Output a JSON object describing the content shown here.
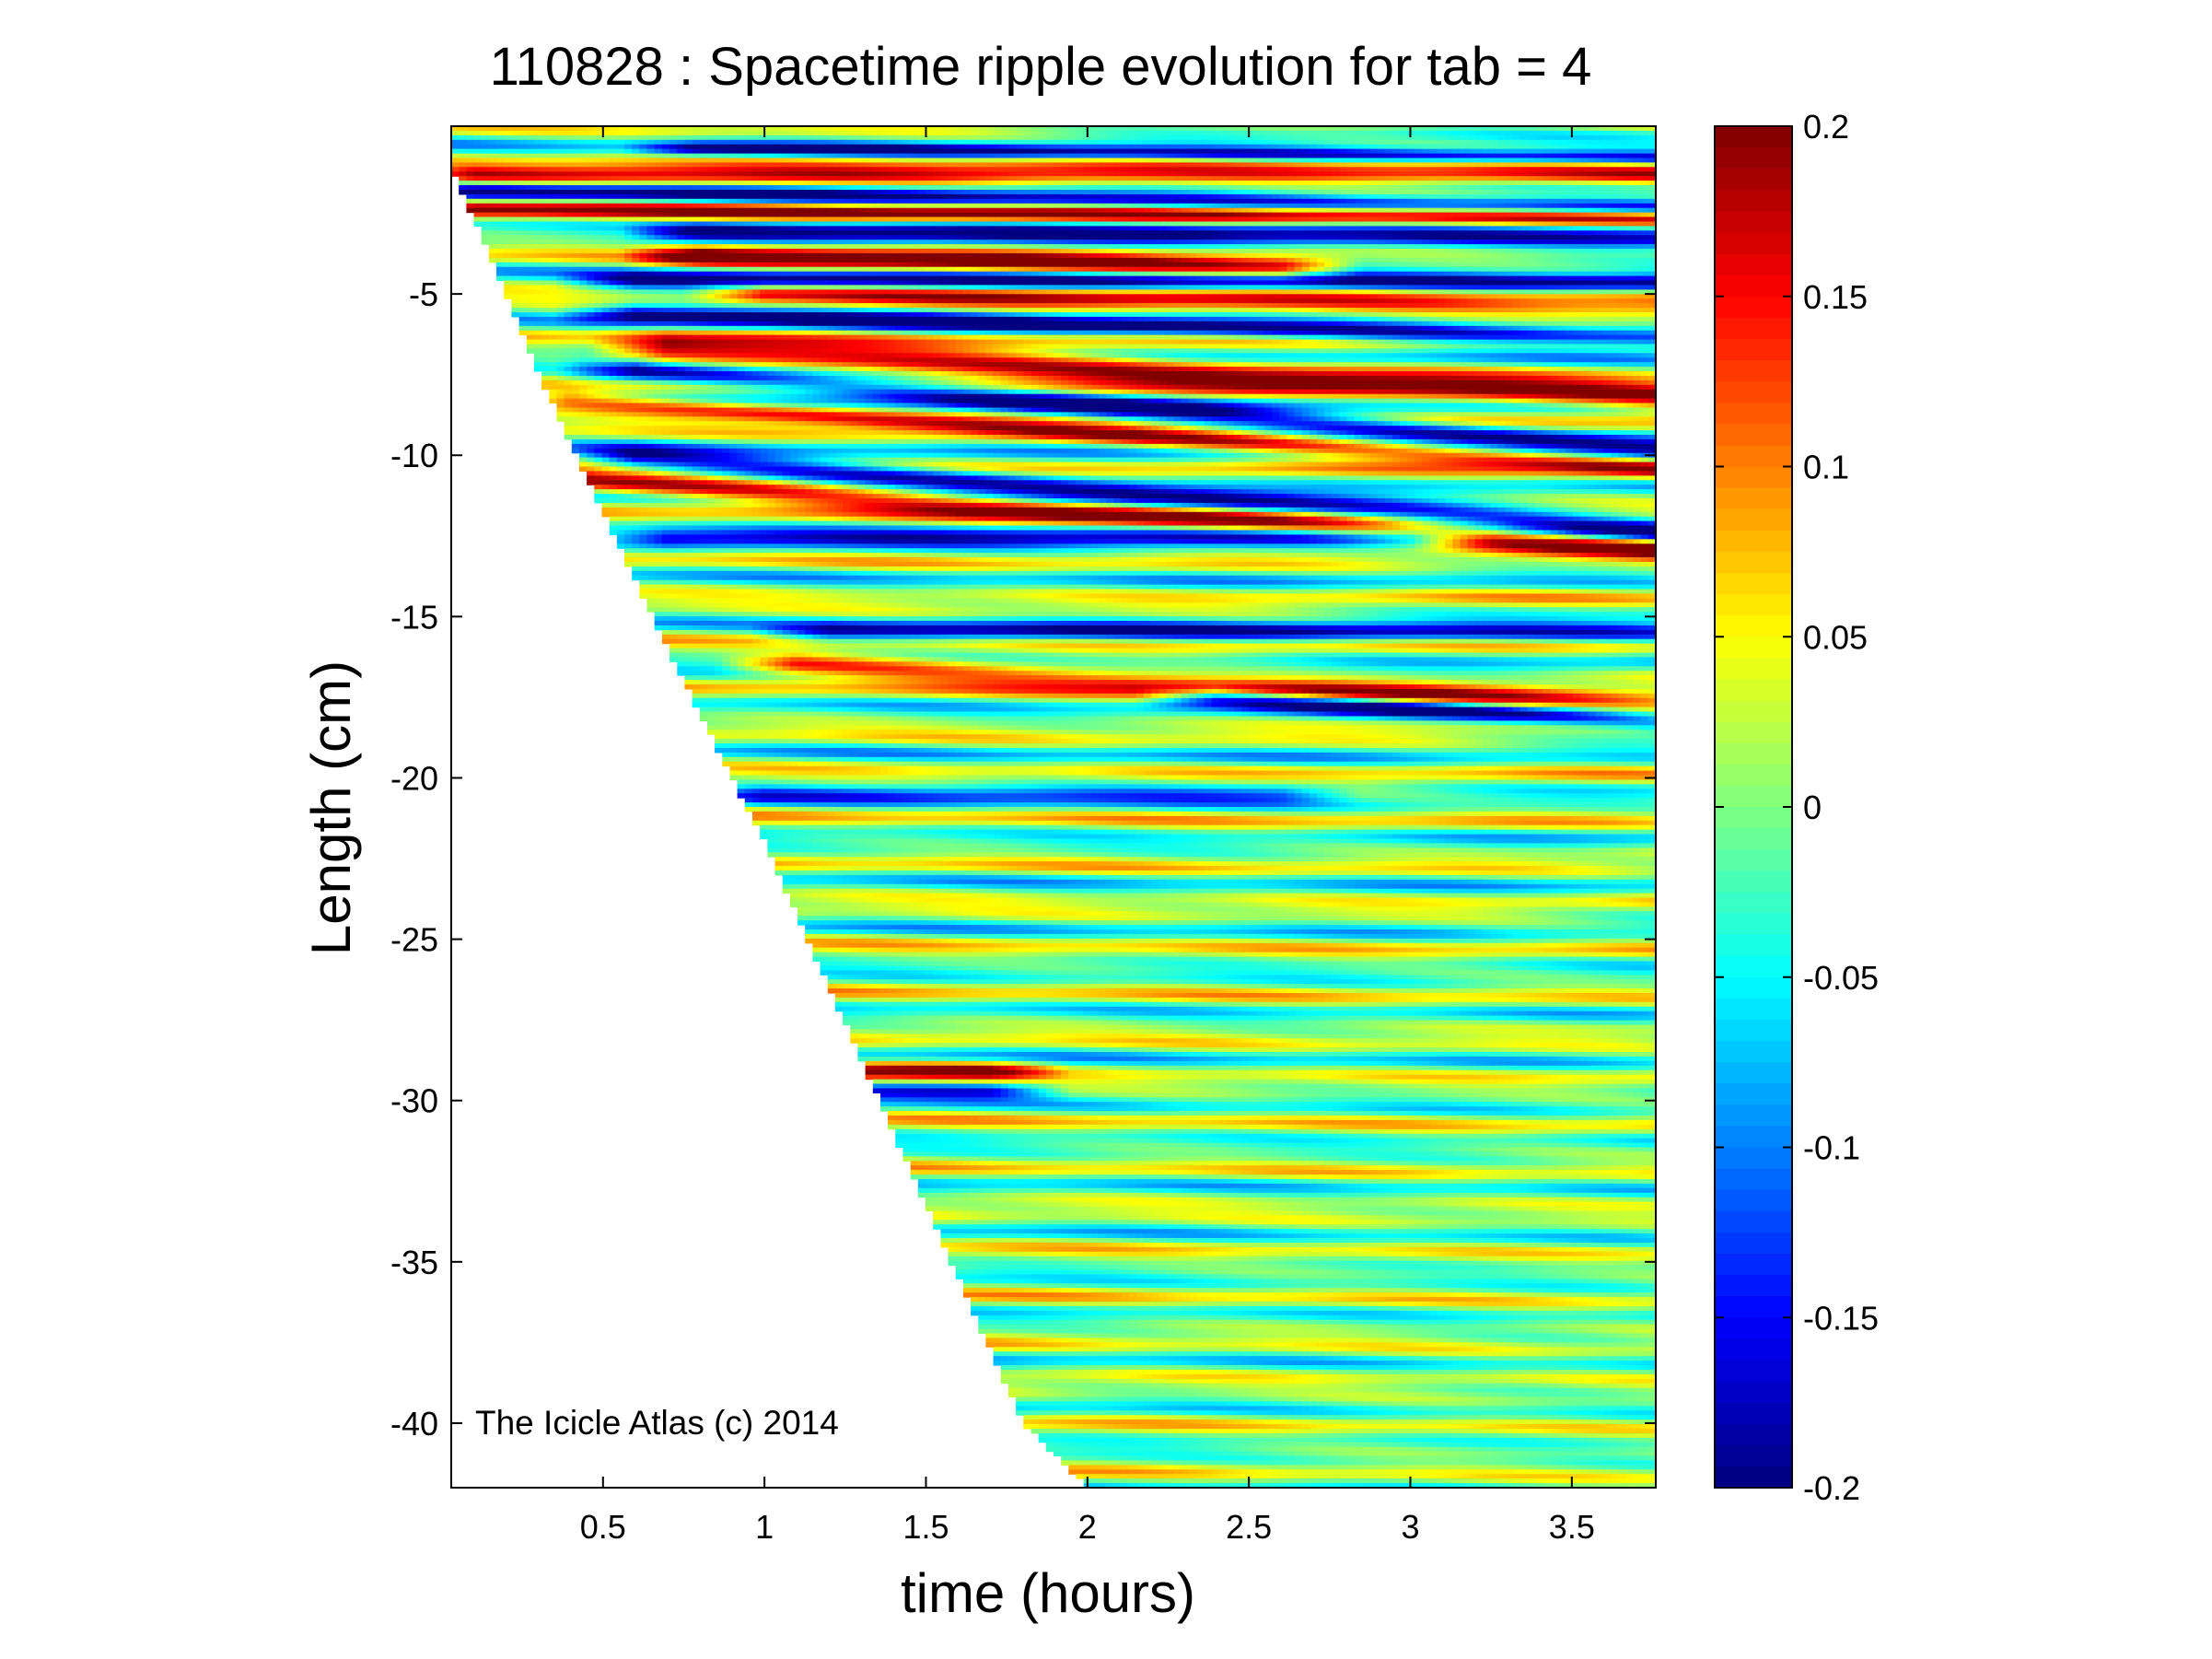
{
  "chart_data": {
    "type": "heatmap",
    "title": "110828 : Spacetime ripple evolution for tab = 4",
    "xlabel": "time (hours)",
    "ylabel": "Length (cm)",
    "xlim": [
      0.03,
      3.76
    ],
    "ylim": [
      -42,
      0.2
    ],
    "xticks": [
      0.5,
      1,
      1.5,
      2,
      2.5,
      3,
      3.5
    ],
    "xticklabels": [
      "0.5",
      "1",
      "1.5",
      "2",
      "2.5",
      "3",
      "3.5"
    ],
    "yticks": [
      -5,
      -10,
      -15,
      -20,
      -25,
      -30,
      -35,
      -40
    ],
    "yticklabels": [
      "-5",
      "-10",
      "-15",
      "-20",
      "-25",
      "-30",
      "-35",
      "-40"
    ],
    "colormap": "jet",
    "clim": [
      -0.2,
      0.2
    ],
    "colorbar_ticks": [
      0.2,
      0.15,
      0.1,
      0.05,
      0,
      -0.05,
      -0.1,
      -0.15,
      -0.2
    ],
    "colorbar_ticklabels": [
      "0.2",
      "0.15",
      "0.1",
      "0.05",
      "0",
      "-0.05",
      "-0.1",
      "-0.15",
      "-0.2"
    ],
    "grid": false,
    "data_extent_boundary": [
      {
        "t": 0.03,
        "length": -1.0
      },
      {
        "t": 0.3,
        "length": -7.5
      },
      {
        "t": 0.7,
        "length": -16.0
      },
      {
        "t": 1.0,
        "length": -22.0
      },
      {
        "t": 1.4,
        "length": -31.0
      },
      {
        "t": 1.8,
        "length": -40.0
      },
      {
        "t": 2.0,
        "length": -42.0
      }
    ],
    "ripple_bands": [
      {
        "sign": 1,
        "amp": 0.17,
        "t0": 0.1,
        "t1": 3.76,
        "y0": -1.3,
        "y1": -1.4,
        "w": 0.28
      },
      {
        "sign": -1,
        "amp": 0.17,
        "t0": 0.1,
        "t1": 3.76,
        "y0": -1.8,
        "y1": -2.3,
        "w": 0.25
      },
      {
        "sign": 1,
        "amp": 0.15,
        "t0": 0.1,
        "t1": 3.76,
        "y0": -2.4,
        "y1": -2.7,
        "w": 0.25
      },
      {
        "sign": -1,
        "amp": 0.16,
        "t0": 0.8,
        "t1": 3.76,
        "y0": -0.5,
        "y1": -0.8,
        "w": 0.2
      },
      {
        "sign": -1,
        "amp": 0.19,
        "t0": 0.8,
        "t1": 3.76,
        "y0": -3.1,
        "y1": -3.4,
        "w": 0.3
      },
      {
        "sign": 1,
        "amp": 0.2,
        "t0": 0.8,
        "t1": 2.6,
        "y0": -3.8,
        "y1": -4.2,
        "w": 0.35
      },
      {
        "sign": -1,
        "amp": 0.18,
        "t0": 0.6,
        "t1": 3.76,
        "y0": -4.6,
        "y1": -4.7,
        "w": 0.28
      },
      {
        "sign": 1,
        "amp": 0.16,
        "t0": 1.0,
        "t1": 3.76,
        "y0": -5.0,
        "y1": -5.5,
        "w": 0.3
      },
      {
        "sign": -1,
        "amp": 0.19,
        "t0": 0.6,
        "t1": 3.76,
        "y0": -5.6,
        "y1": -6.4,
        "w": 0.3
      },
      {
        "sign": 1,
        "amp": 0.2,
        "t0": 0.7,
        "t1": 3.76,
        "y0": -6.7,
        "y1": -8.2,
        "w": 0.45
      },
      {
        "sign": -1,
        "amp": 0.19,
        "t0": 0.6,
        "t1": 3.76,
        "y0": -7.4,
        "y1": -9.8,
        "w": 0.35
      },
      {
        "sign": 1,
        "amp": 0.17,
        "t0": 0.4,
        "t1": 3.76,
        "y0": -8.3,
        "y1": -10.4,
        "w": 0.3
      },
      {
        "sign": -1,
        "amp": 0.19,
        "t0": 0.6,
        "t1": 3.76,
        "y0": -10.1,
        "y1": -12.3,
        "w": 0.35
      },
      {
        "sign": 1,
        "amp": 0.19,
        "t0": 0.45,
        "t1": 3.76,
        "y0": -10.8,
        "y1": -12.9,
        "w": 0.35
      },
      {
        "sign": -1,
        "amp": 0.15,
        "t0": 0.7,
        "t1": 3.0,
        "y0": -12.6,
        "y1": -12.6,
        "w": 0.3
      },
      {
        "sign": -1,
        "amp": 0.15,
        "t0": 1.2,
        "t1": 3.76,
        "y0": -15.5,
        "y1": -15.5,
        "w": 0.3
      },
      {
        "sign": 1,
        "amp": 0.16,
        "t0": 1.1,
        "t1": 3.76,
        "y0": -16.5,
        "y1": -17.8,
        "w": 0.35
      },
      {
        "sign": -1,
        "amp": 0.19,
        "t0": 2.4,
        "t1": 3.76,
        "y0": -17.5,
        "y1": -18.3,
        "w": 0.3
      },
      {
        "sign": -1,
        "amp": 0.1,
        "t0": 1.0,
        "t1": 2.6,
        "y0": -20.5,
        "y1": -20.5,
        "w": 0.3
      },
      {
        "sign": 1,
        "amp": 0.16,
        "t0": 1.3,
        "t1": 1.7,
        "y0": -29.1,
        "y1": -29.1,
        "w": 0.3
      },
      {
        "sign": -1,
        "amp": 0.16,
        "t0": 1.25,
        "t1": 1.7,
        "y0": -29.7,
        "y1": -29.7,
        "w": 0.25
      }
    ]
  },
  "annotation": "The Icicle Atlas (c) 2014"
}
